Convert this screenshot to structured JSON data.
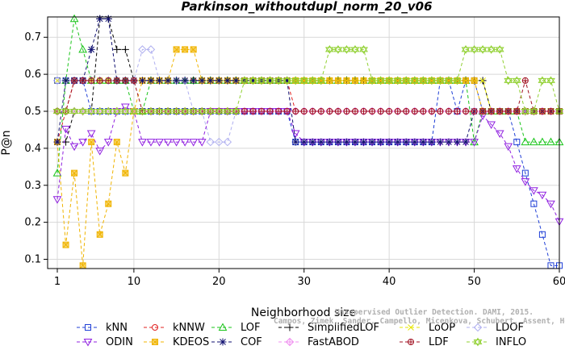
{
  "chart_data": {
    "type": "line",
    "title": "Parkinson_withoutdupl_norm_20_v06",
    "xlabel": "Neighborhood size",
    "ylabel": "P@n",
    "xlim": [
      1,
      60
    ],
    "ylim": [
      0.075,
      0.755
    ],
    "x_ticks": [
      1,
      10,
      20,
      30,
      40,
      50,
      60
    ],
    "y_ticks": [
      0.1,
      0.2,
      0.3,
      0.4,
      0.5,
      0.6,
      0.7
    ],
    "grid": true,
    "legend_position": "bottom",
    "watermark": {
      "line1": "Unsupervised Outlier Detection. DAMI, 2015.",
      "line2": "Campos, Zimek, Sander, Campello, Micenkova, Schubert, Assent, Houle"
    },
    "series": [
      {
        "name": "kNN",
        "color": "#1f3fd6",
        "marker": "square",
        "values": [
          0.583,
          0.583,
          0.583,
          0.583,
          0.5,
          0.5,
          0.5,
          0.5,
          0.5,
          0.5,
          0.5,
          0.5,
          0.5,
          0.5,
          0.5,
          0.5,
          0.5,
          0.5,
          0.5,
          0.5,
          0.5,
          0.5,
          0.5,
          0.5,
          0.5,
          0.5,
          0.5,
          0.5,
          0.417,
          0.417,
          0.417,
          0.417,
          0.417,
          0.417,
          0.417,
          0.417,
          0.417,
          0.417,
          0.417,
          0.417,
          0.417,
          0.417,
          0.417,
          0.417,
          0.417,
          0.583,
          0.583,
          0.5,
          0.583,
          0.583,
          0.5,
          0.5,
          0.5,
          0.5,
          0.417,
          0.333,
          0.25,
          0.167,
          0.083,
          0.083
        ]
      },
      {
        "name": "kNNW",
        "color": "#e0201f",
        "marker": "circle",
        "values": [
          0.417,
          0.5,
          0.583,
          0.583,
          0.583,
          0.583,
          0.583,
          0.583,
          0.583,
          0.583,
          0.583,
          0.583,
          0.583,
          0.583,
          0.583,
          0.583,
          0.583,
          0.583,
          0.583,
          0.583,
          0.583,
          0.583,
          0.583,
          0.583,
          0.583,
          0.583,
          0.583,
          0.583,
          0.5,
          0.5,
          0.5,
          0.5,
          0.5,
          0.5,
          0.5,
          0.5,
          0.5,
          0.5,
          0.5,
          0.5,
          0.5,
          0.5,
          0.5,
          0.5,
          0.5,
          0.5,
          0.5,
          0.5,
          0.5,
          0.5,
          0.5,
          0.5,
          0.5,
          0.5,
          0.5,
          0.5,
          0.5,
          0.5,
          0.5,
          0.5
        ]
      },
      {
        "name": "LOF",
        "color": "#18c418",
        "marker": "triangle-up",
        "values": [
          0.333,
          0.583,
          0.75,
          0.667,
          0.583,
          0.583,
          0.583,
          0.583,
          0.583,
          0.5,
          0.5,
          0.583,
          0.583,
          0.583,
          0.583,
          0.583,
          0.583,
          0.583,
          0.583,
          0.583,
          0.583,
          0.583,
          0.583,
          0.583,
          0.583,
          0.583,
          0.583,
          0.583,
          0.583,
          0.583,
          0.583,
          0.583,
          0.583,
          0.583,
          0.583,
          0.583,
          0.583,
          0.583,
          0.583,
          0.583,
          0.583,
          0.583,
          0.583,
          0.583,
          0.583,
          0.583,
          0.583,
          0.583,
          0.583,
          0.417,
          0.5,
          0.5,
          0.5,
          0.5,
          0.5,
          0.417,
          0.417,
          0.417,
          0.417,
          0.417
        ]
      },
      {
        "name": "SimplifiedLOF",
        "color": "#000000",
        "marker": "plus",
        "values": [
          0.417,
          0.417,
          0.5,
          0.5,
          0.5,
          0.75,
          0.75,
          0.667,
          0.667,
          0.583,
          0.583,
          0.583,
          0.583,
          0.583,
          0.583,
          0.583,
          0.583,
          0.583,
          0.583,
          0.583,
          0.583,
          0.583,
          0.583,
          0.583,
          0.583,
          0.583,
          0.583,
          0.583,
          0.583,
          0.583,
          0.583,
          0.583,
          0.583,
          0.583,
          0.583,
          0.583,
          0.583,
          0.583,
          0.583,
          0.583,
          0.583,
          0.583,
          0.583,
          0.583,
          0.583,
          0.583,
          0.583,
          0.583,
          0.583,
          0.583,
          0.583,
          0.5,
          0.5,
          0.5,
          0.5,
          0.5,
          0.5,
          0.5,
          0.5,
          0.5
        ]
      },
      {
        "name": "LoOP",
        "color": "#e6e600",
        "marker": "x",
        "values": [
          0.583,
          0.583,
          0.583,
          0.583,
          0.583,
          0.583,
          0.583,
          0.583,
          0.583,
          0.583,
          0.583,
          0.583,
          0.583,
          0.583,
          0.583,
          0.583,
          0.583,
          0.583,
          0.583,
          0.583,
          0.583,
          0.583,
          0.583,
          0.583,
          0.583,
          0.583,
          0.583,
          0.583,
          0.583,
          0.583,
          0.583,
          0.583,
          0.583,
          0.583,
          0.583,
          0.583,
          0.583,
          0.583,
          0.583,
          0.583,
          0.583,
          0.583,
          0.583,
          0.583,
          0.583,
          0.583,
          0.583,
          0.583,
          0.583,
          0.583,
          0.583,
          0.5,
          0.5,
          0.5,
          0.5,
          0.5,
          0.5,
          0.5,
          0.5,
          0.5
        ]
      },
      {
        "name": "LDOF",
        "color": "#b0b0f0",
        "marker": "diamond",
        "values": [
          0.583,
          0.583,
          0.583,
          0.583,
          0.583,
          0.583,
          0.583,
          0.583,
          0.583,
          0.583,
          0.667,
          0.667,
          0.583,
          0.583,
          0.583,
          0.583,
          0.5,
          0.5,
          0.417,
          0.417,
          0.417,
          0.5,
          0.5,
          0.5,
          0.5,
          0.5,
          0.5,
          0.5,
          0.5,
          0.5,
          0.5,
          0.5,
          0.5,
          0.5,
          0.5,
          0.5,
          0.5,
          0.5,
          0.5,
          0.5,
          0.5,
          0.5,
          0.5,
          0.5,
          0.5,
          0.5,
          0.5,
          0.5,
          0.5,
          0.5,
          0.5,
          0.5,
          0.5,
          0.5,
          0.5,
          0.5,
          0.5,
          0.5,
          0.5,
          0.5
        ]
      },
      {
        "name": "ODIN",
        "color": "#9020e0",
        "marker": "triangle-down",
        "values": [
          0.262,
          0.452,
          0.405,
          0.417,
          0.44,
          0.393,
          0.417,
          0.5,
          0.512,
          0.5,
          0.417,
          0.417,
          0.417,
          0.417,
          0.417,
          0.417,
          0.417,
          0.417,
          0.5,
          0.5,
          0.5,
          0.5,
          0.5,
          0.5,
          0.5,
          0.5,
          0.5,
          0.5,
          0.44,
          0.417,
          0.417,
          0.417,
          0.417,
          0.417,
          0.417,
          0.417,
          0.417,
          0.417,
          0.417,
          0.417,
          0.417,
          0.417,
          0.417,
          0.417,
          0.417,
          0.417,
          0.417,
          0.417,
          0.417,
          0.417,
          0.488,
          0.464,
          0.44,
          0.405,
          0.345,
          0.31,
          0.286,
          0.274,
          0.25,
          0.202
        ]
      },
      {
        "name": "KDEOS",
        "color": "#f0b400",
        "marker": "square-filled",
        "values": [
          0.417,
          0.139,
          0.333,
          0.083,
          0.417,
          0.167,
          0.25,
          0.417,
          0.333,
          0.5,
          0.583,
          0.583,
          0.583,
          0.583,
          0.667,
          0.667,
          0.667,
          0.583,
          0.583,
          0.583,
          0.583,
          0.583,
          0.583,
          0.583,
          0.583,
          0.583,
          0.583,
          0.583,
          0.583,
          0.583,
          0.583,
          0.583,
          0.583,
          0.583,
          0.583,
          0.583,
          0.583,
          0.583,
          0.583,
          0.583,
          0.583,
          0.583,
          0.583,
          0.583,
          0.583,
          0.583,
          0.583,
          0.583,
          0.583,
          0.583,
          0.5,
          0.5,
          0.5,
          0.5,
          0.5,
          0.5,
          0.5,
          0.5,
          0.5,
          0.5
        ]
      },
      {
        "name": "COF",
        "color": "#101070",
        "marker": "asterisk",
        "values": [
          0.417,
          0.583,
          0.583,
          0.583,
          0.667,
          0.75,
          0.75,
          0.583,
          0.583,
          0.583,
          0.583,
          0.583,
          0.583,
          0.583,
          0.583,
          0.583,
          0.583,
          0.583,
          0.583,
          0.583,
          0.583,
          0.583,
          0.583,
          0.583,
          0.583,
          0.583,
          0.583,
          0.583,
          0.417,
          0.417,
          0.417,
          0.417,
          0.417,
          0.417,
          0.417,
          0.417,
          0.417,
          0.417,
          0.417,
          0.417,
          0.417,
          0.417,
          0.417,
          0.417,
          0.417,
          0.417,
          0.417,
          0.417,
          0.417,
          0.5,
          0.5,
          0.5,
          0.5,
          0.5,
          0.5,
          0.5,
          0.5,
          0.5,
          0.5,
          0.5
        ]
      },
      {
        "name": "FastABOD",
        "color": "#f090f0",
        "marker": "diamond-plus",
        "values": [
          0.5,
          0.5,
          0.5,
          0.5,
          0.5,
          0.5,
          0.5,
          0.5,
          0.5,
          0.5,
          0.5,
          0.5,
          0.5,
          0.5,
          0.5,
          0.5,
          0.5,
          0.5,
          0.5,
          0.5,
          0.5,
          0.5,
          0.5,
          0.5,
          0.5,
          0.5,
          0.5,
          0.5,
          0.5,
          0.5,
          0.5,
          0.5,
          0.5,
          0.5,
          0.5,
          0.5,
          0.5,
          0.5,
          0.5,
          0.5,
          0.5,
          0.5,
          0.5,
          0.5,
          0.5,
          0.5,
          0.5,
          0.5,
          0.5,
          0.5,
          0.5,
          0.5,
          0.5,
          0.5,
          0.5,
          0.5,
          0.5,
          0.5,
          0.5,
          0.5
        ]
      },
      {
        "name": "LDF",
        "color": "#a01020",
        "marker": "circle-plus",
        "values": [
          0.5,
          0.5,
          0.583,
          0.583,
          0.583,
          0.583,
          0.583,
          0.583,
          0.583,
          0.583,
          0.5,
          0.5,
          0.5,
          0.5,
          0.5,
          0.5,
          0.5,
          0.5,
          0.5,
          0.5,
          0.5,
          0.5,
          0.5,
          0.5,
          0.5,
          0.5,
          0.5,
          0.5,
          0.5,
          0.5,
          0.5,
          0.5,
          0.5,
          0.5,
          0.5,
          0.5,
          0.5,
          0.5,
          0.5,
          0.5,
          0.5,
          0.5,
          0.5,
          0.5,
          0.5,
          0.5,
          0.5,
          0.5,
          0.5,
          0.5,
          0.5,
          0.5,
          0.5,
          0.5,
          0.5,
          0.583,
          0.5,
          0.5,
          0.5,
          0.5
        ]
      },
      {
        "name": "INFLO",
        "color": "#90d030",
        "marker": "star-triangle",
        "values": [
          0.5,
          0.5,
          0.5,
          0.5,
          0.5,
          0.5,
          0.5,
          0.5,
          0.5,
          0.5,
          0.5,
          0.5,
          0.5,
          0.5,
          0.5,
          0.5,
          0.5,
          0.5,
          0.5,
          0.5,
          0.5,
          0.5,
          0.583,
          0.583,
          0.583,
          0.583,
          0.583,
          0.583,
          0.583,
          0.583,
          0.583,
          0.583,
          0.667,
          0.667,
          0.667,
          0.667,
          0.667,
          0.583,
          0.583,
          0.583,
          0.583,
          0.583,
          0.583,
          0.583,
          0.583,
          0.583,
          0.583,
          0.583,
          0.667,
          0.667,
          0.667,
          0.667,
          0.667,
          0.583,
          0.583,
          0.5,
          0.5,
          0.583,
          0.583,
          0.5
        ]
      }
    ]
  }
}
